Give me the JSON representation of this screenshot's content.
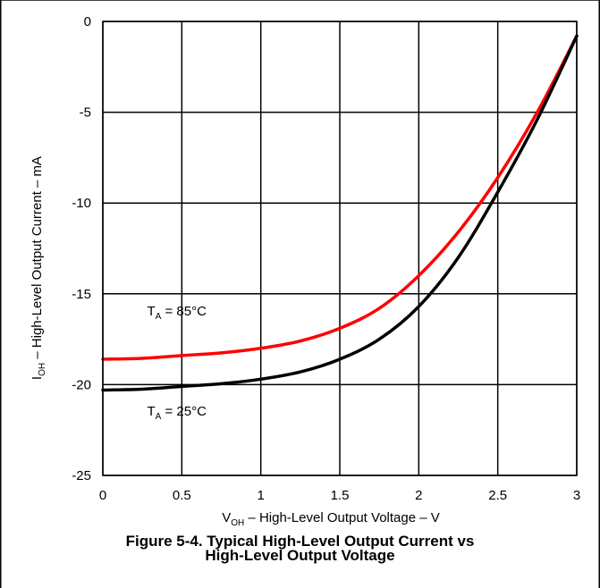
{
  "chart_data": {
    "type": "line",
    "title": "",
    "xlabel": {
      "main": "V",
      "sub": "OH",
      "rest": " – High-Level Output Voltage – V"
    },
    "ylabel": {
      "main": "I",
      "sub": "OH",
      "rest": " – High-Level Output Current – mA"
    },
    "xlim": [
      0,
      3
    ],
    "ylim": [
      -25,
      0
    ],
    "xticks": [
      0,
      0.5,
      1,
      1.5,
      2,
      2.5,
      3
    ],
    "xtick_labels": [
      "0",
      "0.5",
      "1",
      "1.5",
      "2",
      "2.5",
      "3"
    ],
    "yticks": [
      0,
      -5,
      -10,
      -15,
      -20,
      -25
    ],
    "ytick_labels": [
      "0",
      "-5",
      "-10",
      "-15",
      "-20",
      "-25"
    ],
    "grid": true,
    "series": [
      {
        "name": "T_A = 85°C",
        "color": "#ff0000",
        "x": [
          0,
          0.25,
          0.5,
          0.75,
          1.0,
          1.25,
          1.5,
          1.75,
          2.0,
          2.25,
          2.5,
          2.75,
          3.0
        ],
        "y": [
          -18.6,
          -18.55,
          -18.4,
          -18.25,
          -18.0,
          -17.6,
          -16.9,
          -15.8,
          -14.0,
          -11.6,
          -8.6,
          -5.0,
          -0.8
        ]
      },
      {
        "name": "T_A = 25°C",
        "color": "#000000",
        "x": [
          0,
          0.25,
          0.5,
          0.75,
          1.0,
          1.25,
          1.5,
          1.75,
          2.0,
          2.25,
          2.5,
          2.75,
          3.0
        ],
        "y": [
          -20.3,
          -20.25,
          -20.1,
          -19.95,
          -19.7,
          -19.3,
          -18.6,
          -17.5,
          -15.7,
          -13.0,
          -9.4,
          -5.4,
          -0.8
        ]
      }
    ],
    "annotations": [
      {
        "series": 0,
        "main": "T",
        "sub": "A",
        "rest": " = 85°C",
        "at_x": 0.28,
        "at_y": -16.2
      },
      {
        "series": 1,
        "main": "T",
        "sub": "A",
        "rest": " = 25°C",
        "at_x": 0.28,
        "at_y": -21.7
      }
    ]
  },
  "caption": {
    "line1": "Figure 5-4. Typical High-Level Output Current vs",
    "line2": "High-Level Output Voltage"
  }
}
